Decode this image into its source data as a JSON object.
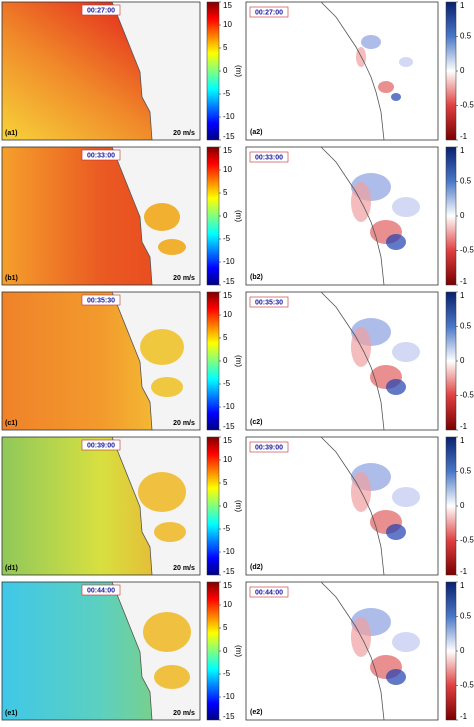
{
  "panels": [
    {
      "time": "00:27:00",
      "left_label": "(a1)",
      "right_label": "(a2)"
    },
    {
      "time": "00:33:00",
      "left_label": "(b1)",
      "right_label": "(b2)"
    },
    {
      "time": "00:35:30",
      "left_label": "(c1)",
      "right_label": "(c2)"
    },
    {
      "time": "00:39:00",
      "left_label": "(d1)",
      "right_label": "(d2)"
    },
    {
      "time": "00:44:00",
      "left_label": "(e1)",
      "right_label": "(e2)"
    }
  ],
  "scale_label": "20 m/s",
  "left_colorbar": {
    "range": [
      -15,
      15
    ],
    "ticks": [
      15,
      10,
      5,
      0,
      -5,
      -10,
      -15
    ],
    "unit": "(m)"
  },
  "right_colorbar": {
    "range": [
      -1,
      1
    ],
    "ticks": [
      1,
      0.5,
      0,
      -0.5,
      -1
    ]
  }
}
